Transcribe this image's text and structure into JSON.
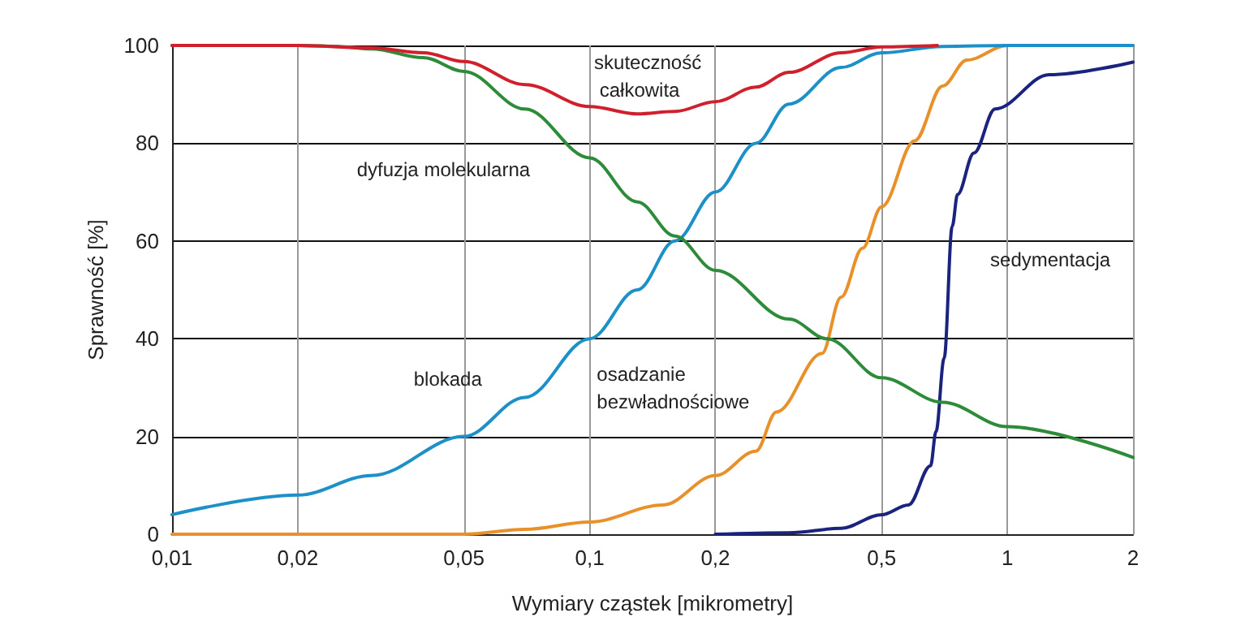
{
  "chart_data": {
    "type": "line",
    "xlabel": "Wymiary cząstek [mikrometry]",
    "ylabel": "Sprawność [%]",
    "log": "x",
    "grid": true,
    "legend": false,
    "marker": "none",
    "line_style": "solid",
    "xlim": [
      0.01,
      2
    ],
    "ylim": [
      0,
      100
    ],
    "xticks": [
      {
        "value": 0.01,
        "label": "0,01"
      },
      {
        "value": 0.02,
        "label": "0,02"
      },
      {
        "value": 0.05,
        "label": "0,05"
      },
      {
        "value": 0.1,
        "label": "0,1"
      },
      {
        "value": 0.2,
        "label": "0,2"
      },
      {
        "value": 0.5,
        "label": "0,5"
      },
      1,
      2
    ],
    "yticks": [
      0,
      20,
      40,
      60,
      80,
      100
    ],
    "series": [
      {
        "name": "skuteczność całkowita",
        "color": "#d0202e",
        "x": [
          0.01,
          0.02,
          0.03,
          0.04,
          0.05,
          0.07,
          0.1,
          0.13,
          0.16,
          0.2,
          0.25,
          0.3,
          0.4,
          0.5,
          0.68
        ],
        "values": [
          100,
          100,
          99.5,
          98.5,
          96.7,
          92,
          87.5,
          86,
          86.5,
          88.5,
          91.5,
          94.5,
          98.5,
          99.7,
          100
        ]
      },
      {
        "name": "dyfuzja molekularna",
        "color": "#2e8b3a",
        "x": [
          0.01,
          0.02,
          0.025,
          0.03,
          0.04,
          0.05,
          0.07,
          0.1,
          0.13,
          0.16,
          0.2,
          0.3,
          0.37,
          0.5,
          0.7,
          1,
          2
        ],
        "values": [
          100,
          100,
          99.8,
          99.3,
          97.5,
          94.7,
          87,
          77,
          68,
          61,
          54,
          44,
          40,
          32,
          27,
          22,
          15.7
        ]
      },
      {
        "name": "blokada",
        "color": "#1e90c8",
        "x": [
          0.01,
          0.02,
          0.03,
          0.05,
          0.07,
          0.1,
          0.13,
          0.16,
          0.2,
          0.25,
          0.3,
          0.4,
          0.5,
          0.7,
          1,
          2
        ],
        "values": [
          4,
          8,
          12,
          20,
          28,
          40,
          50,
          60,
          70,
          80,
          88,
          95.5,
          98.5,
          99.8,
          100,
          100
        ]
      },
      {
        "name": "osadzanie bezwładnościowe",
        "color": "#e8902a",
        "x": [
          0.01,
          0.05,
          0.07,
          0.1,
          0.15,
          0.2,
          0.25,
          0.28,
          0.36,
          0.4,
          0.45,
          0.5,
          0.6,
          0.7,
          0.8,
          1,
          2
        ],
        "values": [
          0,
          0,
          1,
          2.5,
          6,
          12,
          17,
          25,
          37,
          48.5,
          58.5,
          67,
          80.5,
          91.7,
          97,
          100,
          100
        ]
      },
      {
        "name": "sedymentacja",
        "color": "#1a237e",
        "x": [
          0.2,
          0.3,
          0.4,
          0.5,
          0.58,
          0.655,
          0.675,
          0.706,
          0.738,
          0.76,
          0.832,
          0.935,
          1.26,
          2
        ],
        "values": [
          0,
          0.3,
          1.2,
          4,
          6,
          14,
          21,
          36,
          63,
          69.5,
          78,
          87,
          94,
          96.6
        ]
      }
    ]
  }
}
